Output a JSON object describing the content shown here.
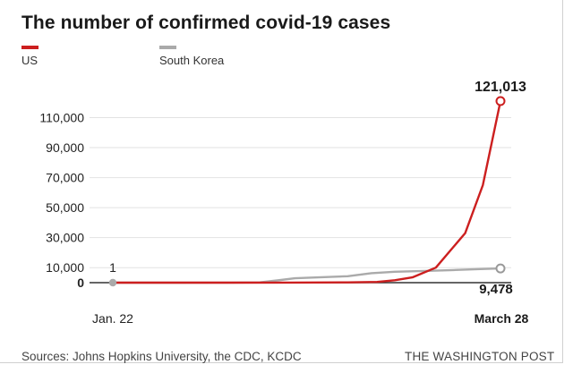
{
  "title": "The number of confirmed covid-19 cases",
  "legend": [
    {
      "label": "US",
      "color": "#cc1f1f"
    },
    {
      "label": "South Korea",
      "color": "#aaaaaa"
    }
  ],
  "footer": {
    "source": "Sources: Johns Hopkins University, the CDC, KCDC",
    "brand": "THE WASHINGTON POST"
  },
  "chart_data": {
    "type": "line",
    "title": "The number of confirmed covid-19 cases",
    "xlabel": "",
    "ylabel": "",
    "x_start_label": "Jan. 22",
    "x_end_label": "March 28",
    "x_days": 67,
    "ylim": [
      0,
      121013
    ],
    "yticks": [
      0,
      10000,
      30000,
      50000,
      70000,
      90000,
      110000
    ],
    "ytick_labels": [
      "0",
      "10,000",
      "30,000",
      "50,000",
      "70,000",
      "90,000",
      "110,000"
    ],
    "series": [
      {
        "name": "US",
        "color": "#cc1f1f",
        "x": [
          0,
          10,
          20,
          30,
          40,
          45,
          48,
          51,
          55,
          60,
          63,
          66
        ],
        "y": [
          1,
          8,
          15,
          60,
          200,
          500,
          1600,
          3500,
          10000,
          33000,
          65000,
          121013
        ],
        "end_label": "121,013"
      },
      {
        "name": "South Korea",
        "color": "#aaaaaa",
        "x": [
          0,
          10,
          20,
          25,
          28,
          31,
          35,
          40,
          44,
          48,
          53,
          58,
          62,
          66
        ],
        "y": [
          1,
          25,
          31,
          160,
          1500,
          2900,
          3500,
          4300,
          6300,
          7300,
          7800,
          8400,
          9000,
          9478
        ],
        "start_label": "1",
        "end_label": "9,478"
      }
    ]
  }
}
